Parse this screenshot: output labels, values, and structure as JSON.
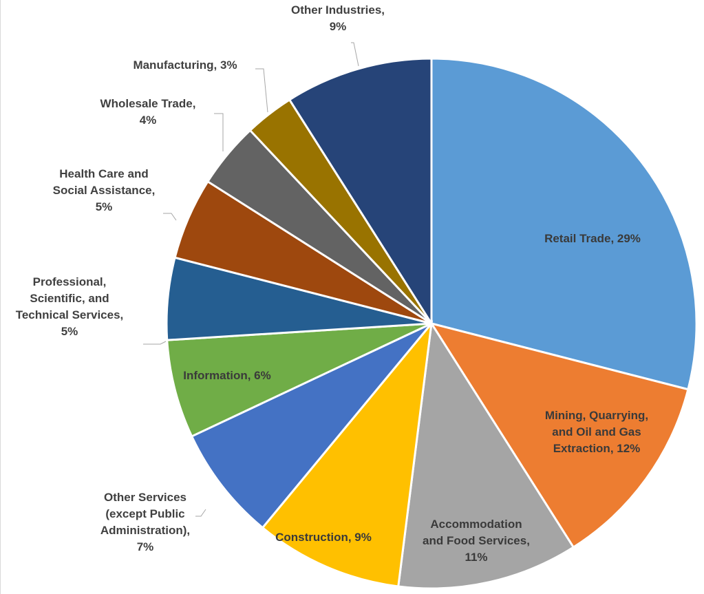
{
  "chart_data": {
    "type": "pie",
    "start_angle_deg": 0,
    "direction": "clockwise",
    "slices": [
      {
        "label": [
          "Retail Trade, 29%"
        ],
        "value": 29,
        "color": "#5b9bd5",
        "label_inside": true
      },
      {
        "label": [
          "Mining, Quarrying,",
          "and Oil and Gas",
          "Extraction, 12%"
        ],
        "value": 12,
        "color": "#ed7d31",
        "label_inside": true
      },
      {
        "label": [
          "Accommodation",
          "and Food Services,",
          "11%"
        ],
        "value": 11,
        "color": "#a5a5a5",
        "label_inside": true
      },
      {
        "label": [
          "Construction, 9%"
        ],
        "value": 9,
        "color": "#ffc000",
        "label_inside": true
      },
      {
        "label": [
          "Other Services",
          "(except Public",
          "Administration),",
          "7%"
        ],
        "value": 7,
        "color": "#4472c4",
        "label_inside": false
      },
      {
        "label": [
          "Information, 6%"
        ],
        "value": 6,
        "color": "#70ad47",
        "label_inside": true
      },
      {
        "label": [
          "Professional,",
          "Scientific, and",
          "Technical Services,",
          "5%"
        ],
        "value": 5,
        "color": "#255e91",
        "label_inside": false
      },
      {
        "label": [
          "Health Care and",
          "Social Assistance,",
          "5%"
        ],
        "value": 5,
        "color": "#9e480e",
        "label_inside": false
      },
      {
        "label": [
          "Wholesale Trade,",
          "4%"
        ],
        "value": 4,
        "color": "#636363",
        "label_inside": false
      },
      {
        "label": [
          "Manufacturing, 3%"
        ],
        "value": 3,
        "color": "#997300",
        "label_inside": false
      },
      {
        "label": [
          "Other Industries,",
          "9%"
        ],
        "value": 9,
        "color": "#264478",
        "label_inside": false
      }
    ],
    "title": "",
    "legend": "none"
  }
}
